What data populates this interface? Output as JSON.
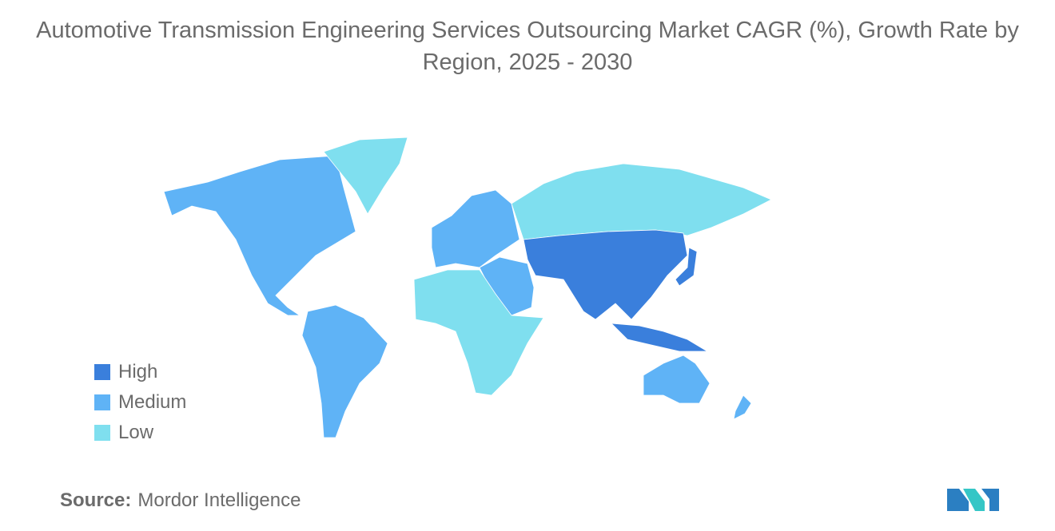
{
  "header": {
    "title": "Automotive Transmission Engineering Services Outsourcing Market CAGR (%), Growth Rate by Region, 2025 - 2030"
  },
  "legend": [
    {
      "label": "High",
      "color": "#3a7fdc"
    },
    {
      "label": "Medium",
      "color": "#5fb3f6"
    },
    {
      "label": "Low",
      "color": "#7fdfef"
    }
  ],
  "footer": {
    "source_label": "Source:",
    "source": "Mordor Intelligence"
  }
}
